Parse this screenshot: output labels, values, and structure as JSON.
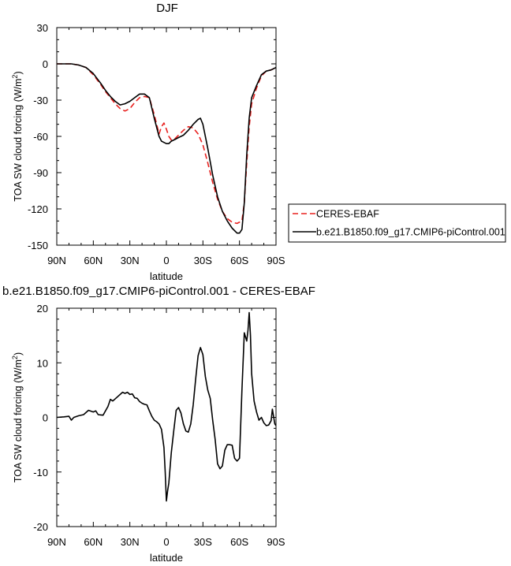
{
  "chart_data": [
    {
      "type": "line",
      "title": "DJF",
      "xlabel": "latitude",
      "ylabel": "TOA SW cloud forcing (W/m",
      "ylabel_sup": "2",
      "ylabel_close": ")",
      "xlim": [
        90,
        -90
      ],
      "ylim": [
        -150,
        30
      ],
      "xticks": [
        90,
        60,
        30,
        0,
        -30,
        -60,
        -90
      ],
      "xtick_labels": [
        "90N",
        "60N",
        "30N",
        "0",
        "30S",
        "60S",
        "90S"
      ],
      "yticks": [
        30,
        0,
        -30,
        -60,
        -90,
        -120,
        -150
      ],
      "ytick_labels": [
        "30",
        "0",
        "-30",
        "-60",
        "-90",
        "-120",
        "-150"
      ],
      "legend_position": "right",
      "series": [
        {
          "name": "CERES-EBAF",
          "color": "#e8201e",
          "dash": "dashed",
          "x": [
            90,
            84,
            78,
            72,
            66,
            60,
            54,
            50,
            46,
            42,
            38,
            34,
            30,
            26,
            22,
            18,
            14,
            10,
            6,
            4,
            2,
            0,
            -2,
            -4,
            -6,
            -8,
            -10,
            -14,
            -18,
            -22,
            -26,
            -30,
            -34,
            -38,
            -42,
            -46,
            -50,
            -54,
            -58,
            -62,
            -64,
            -66,
            -68,
            -70,
            -74,
            -78,
            -82,
            -86,
            -90
          ],
          "y": [
            0,
            0,
            0,
            -1,
            -3,
            -9,
            -17,
            -23,
            -28,
            -33,
            -37,
            -39,
            -37,
            -32,
            -28,
            -27,
            -28,
            -42,
            -58,
            -52,
            -49,
            -54,
            -60,
            -63,
            -63,
            -61,
            -59,
            -55,
            -52,
            -53,
            -58,
            -67,
            -82,
            -98,
            -112,
            -122,
            -128,
            -131,
            -132,
            -130,
            -115,
            -82,
            -52,
            -33,
            -20,
            -10,
            -6,
            -5,
            -3
          ]
        },
        {
          "name": "b.e21.B1850.f09_g17.CMIP6-piControl.001",
          "color": "#000000",
          "dash": "solid",
          "x": [
            90,
            84,
            78,
            72,
            66,
            60,
            54,
            50,
            46,
            42,
            38,
            34,
            30,
            26,
            22,
            18,
            14,
            10,
            6,
            4,
            2,
            0,
            -2,
            -4,
            -6,
            -8,
            -10,
            -14,
            -18,
            -22,
            -26,
            -28,
            -30,
            -34,
            -38,
            -42,
            -46,
            -50,
            -54,
            -58,
            -60,
            -62,
            -64,
            -66,
            -68,
            -70,
            -74,
            -78,
            -82,
            -86,
            -90
          ],
          "y": [
            0,
            0,
            0,
            -1,
            -3,
            -8,
            -16,
            -22,
            -27,
            -31,
            -34,
            -33,
            -31,
            -28,
            -25,
            -25,
            -28,
            -45,
            -60,
            -64,
            -65,
            -66,
            -66,
            -64,
            -63,
            -62,
            -61,
            -59,
            -55,
            -50,
            -46,
            -45,
            -50,
            -70,
            -92,
            -110,
            -122,
            -130,
            -136,
            -140,
            -140,
            -137,
            -115,
            -75,
            -45,
            -28,
            -18,
            -9,
            -6,
            -5,
            -3
          ]
        }
      ]
    },
    {
      "type": "line",
      "title": "b.e21.B1850.f09_g17.CMIP6-piControl.001 - CERES-EBAF",
      "xlabel": "latitude",
      "ylabel": "TOA SW cloud forcing (W/m",
      "ylabel_sup": "2",
      "ylabel_close": ")",
      "xlim": [
        90,
        -90
      ],
      "ylim": [
        -20,
        20
      ],
      "xticks": [
        90,
        60,
        30,
        0,
        -30,
        -60,
        -90
      ],
      "xtick_labels": [
        "90N",
        "60N",
        "30N",
        "0",
        "30S",
        "60S",
        "90S"
      ],
      "yticks": [
        20,
        10,
        0,
        -10,
        -20
      ],
      "ytick_labels": [
        "20",
        "10",
        "0",
        "-10",
        "-20"
      ],
      "series": [
        {
          "color": "#000000",
          "x": [
            90,
            84,
            80,
            78,
            76,
            72,
            68,
            64,
            60,
            58,
            56,
            52,
            48,
            46,
            44,
            40,
            36,
            34,
            32,
            30,
            28,
            26,
            24,
            22,
            20,
            18,
            16,
            14,
            12,
            10,
            8,
            6,
            4,
            2,
            1,
            0,
            -1,
            -2,
            -4,
            -6,
            -8,
            -10,
            -12,
            -14,
            -16,
            -18,
            -20,
            -22,
            -24,
            -26,
            -28,
            -30,
            -32,
            -34,
            -36,
            -38,
            -40,
            -42,
            -44,
            -46,
            -48,
            -50,
            -52,
            -54,
            -56,
            -58,
            -60,
            -62,
            -64,
            -66,
            -67,
            -68,
            -69,
            -70,
            -72,
            -74,
            -76,
            -78,
            -80,
            -82,
            -84,
            -86,
            -87,
            -88,
            -89,
            -90
          ],
          "y": [
            0,
            0.1,
            0.2,
            -0.5,
            0,
            0.3,
            0.5,
            1.3,
            1,
            1.2,
            0.5,
            0.4,
            2,
            3.3,
            3,
            3.8,
            4.6,
            4.4,
            4.6,
            4.2,
            4.3,
            3.6,
            3.5,
            2.9,
            2.6,
            2.4,
            2.3,
            1.2,
            0.2,
            -0.5,
            -0.8,
            -1.2,
            -2.2,
            -5.5,
            -10,
            -15.3,
            -13.5,
            -12,
            -6.5,
            -2.5,
            1.3,
            1.8,
            0.8,
            -1.2,
            -2.5,
            -2.7,
            -1.2,
            2.3,
            7,
            11.3,
            12.8,
            11.5,
            7.5,
            5,
            3.5,
            -0.5,
            -4,
            -8.5,
            -9.4,
            -8.9,
            -6,
            -5,
            -5,
            -5.1,
            -7.5,
            -8,
            -7.5,
            5,
            15.5,
            14,
            16,
            19.2,
            15,
            8,
            3,
            1,
            -0.5,
            0,
            -1,
            -1.5,
            -1.4,
            -0.6,
            1.5,
            0.2,
            -1.2,
            -1.5
          ]
        }
      ]
    }
  ]
}
